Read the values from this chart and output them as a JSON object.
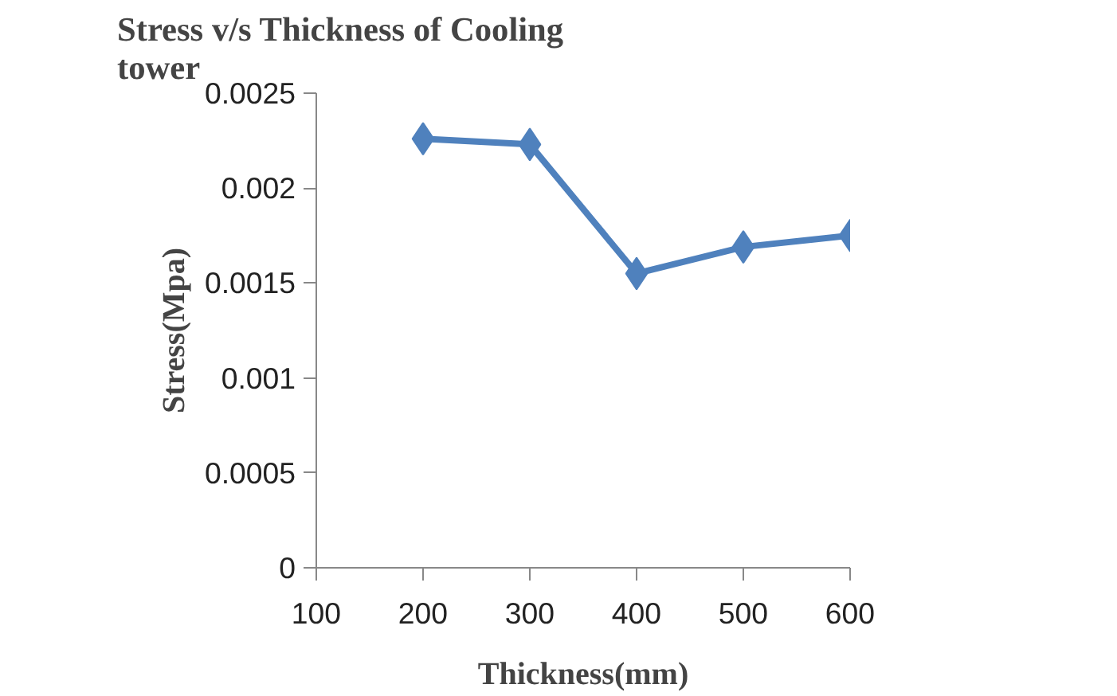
{
  "chart_data": {
    "type": "line",
    "title": "Stress v/s Thickness of Cooling\ntower",
    "xlabel": "Thickness(mm)",
    "ylabel": "Stress(Mpa)",
    "series": [
      {
        "color": "#4f81bd",
        "x": [
          200,
          300,
          400,
          500,
          600
        ],
        "values": [
          0.00226,
          0.00223,
          0.00155,
          0.00169,
          0.00175
        ]
      }
    ],
    "xlim": [
      100,
      600
    ],
    "xticks": [
      100,
      200,
      300,
      400,
      500,
      600
    ],
    "ylim": [
      0,
      0.0025
    ],
    "yticks": [
      0,
      0.0005,
      0.001,
      0.0015,
      0.002,
      0.0025
    ],
    "grid": false,
    "legend": false,
    "marker": "diamond",
    "line_style": "solid"
  }
}
